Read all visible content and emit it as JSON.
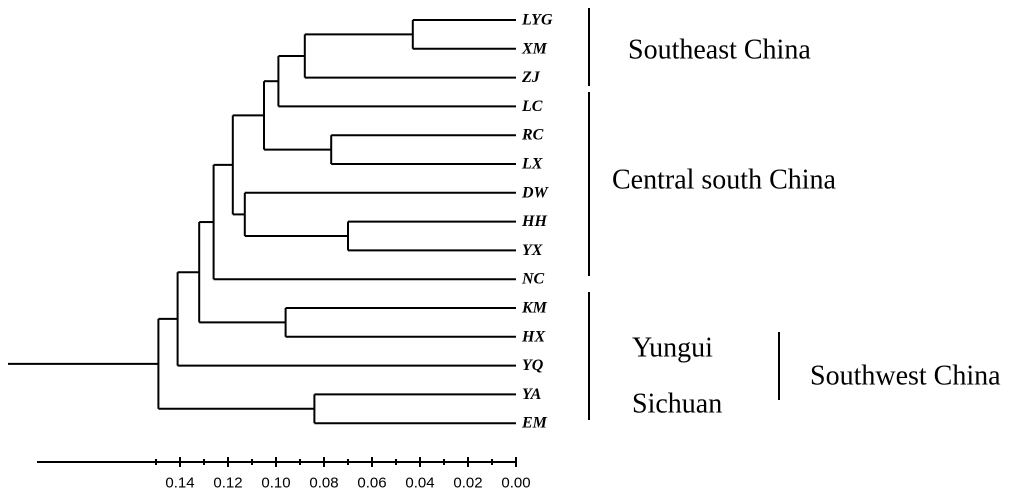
{
  "leaves": [
    "LYG",
    "XM",
    "ZJ",
    "LC",
    "RC",
    "LX",
    "DW",
    "HH",
    "YX",
    "NC",
    "KM",
    "HX",
    "YQ",
    "YA",
    "EM"
  ],
  "tree": {
    "h": 0.149,
    "children": [
      {
        "h": 0.141,
        "children": [
          {
            "h": 0.132,
            "children": [
              {
                "h": 0.126,
                "children": [
                  {
                    "h": 0.118,
                    "children": [
                      {
                        "h": 0.105,
                        "children": [
                          {
                            "h": 0.099,
                            "children": [
                              {
                                "h": 0.088,
                                "children": [
                                  {
                                    "h": 0.043,
                                    "children": [
                                      {
                                        "leaf": "LYG"
                                      },
                                      {
                                        "leaf": "XM"
                                      }
                                    ]
                                  },
                                  {
                                    "leaf": "ZJ"
                                  }
                                ]
                              },
                              {
                                "leaf": "LC"
                              }
                            ]
                          },
                          {
                            "h": 0.077,
                            "children": [
                              {
                                "leaf": "RC"
                              },
                              {
                                "leaf": "LX"
                              }
                            ]
                          }
                        ]
                      },
                      {
                        "h": 0.113,
                        "children": [
                          {
                            "leaf": "DW"
                          },
                          {
                            "h": 0.07,
                            "children": [
                              {
                                "leaf": "HH"
                              },
                              {
                                "leaf": "YX"
                              }
                            ]
                          }
                        ]
                      }
                    ]
                  },
                  {
                    "leaf": "NC"
                  }
                ]
              },
              {
                "h": 0.096,
                "children": [
                  {
                    "leaf": "KM"
                  },
                  {
                    "leaf": "HX"
                  }
                ]
              }
            ]
          },
          {
            "leaf": "YQ"
          }
        ]
      },
      {
        "h": 0.084,
        "children": [
          {
            "leaf": "YA"
          },
          {
            "leaf": "EM"
          }
        ]
      }
    ]
  },
  "axis": {
    "ticks": [
      0.14,
      0.12,
      0.1,
      0.08,
      0.06,
      0.04,
      0.02,
      0.0
    ],
    "tick_labels": [
      "0.14",
      "0.12",
      "0.10",
      "0.08",
      "0.06",
      "0.04",
      "0.02",
      "0.00"
    ]
  },
  "groups": [
    {
      "label": "Southeast China",
      "from": "LYG",
      "to": "ZJ"
    },
    {
      "label": "Central south China",
      "from": "LC",
      "to": "NC"
    },
    {
      "label": "Yungui",
      "from": "KM",
      "to": "YQ"
    },
    {
      "label": "Sichuan",
      "from": "YA",
      "to": "EM"
    }
  ],
  "supergroup": {
    "label": "Southwest China"
  }
}
